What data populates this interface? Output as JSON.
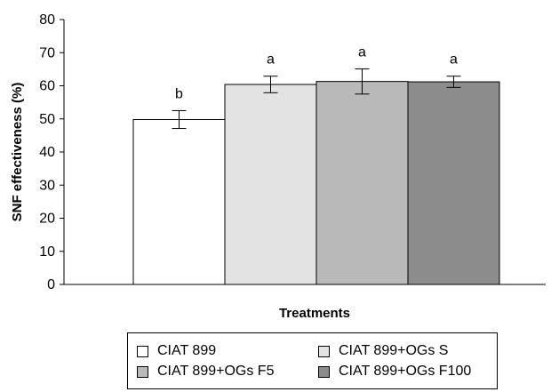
{
  "chart_data": {
    "type": "bar",
    "ylabel": "SNF effectiveness (%)",
    "xlabel": "Treatments",
    "ylim": [
      0,
      80
    ],
    "yticks": [
      0,
      10,
      20,
      30,
      40,
      50,
      60,
      70,
      80
    ],
    "grid": false,
    "categories": [
      "CIAT 899",
      "CIAT 899+OGs S",
      "CIAT 899+OGs F5",
      "CIAT 899+OGs F100"
    ],
    "values": [
      49.8,
      60.4,
      61.3,
      61.2
    ],
    "errors": [
      2.7,
      2.5,
      3.8,
      1.7
    ],
    "significance_letters": [
      "b",
      "a",
      "a",
      "a"
    ],
    "colors": [
      "#ffffff",
      "#e3e3e3",
      "#b9b9b9",
      "#8c8c8c"
    ],
    "legend_position": "bottom",
    "legend": [
      "CIAT 899",
      "CIAT 899+OGs S",
      "CIAT 899+OGs F5",
      "CIAT 899+OGs F100"
    ]
  }
}
